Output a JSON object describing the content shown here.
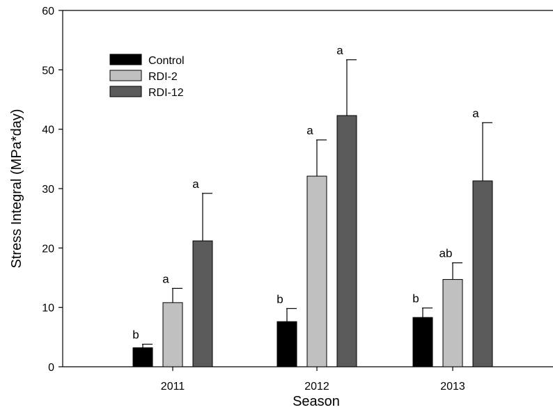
{
  "chart_data": {
    "type": "bar",
    "title": "",
    "xlabel": "Season",
    "ylabel": "Stress Integral (MPa*day)",
    "categories": [
      "2011",
      "2012",
      "2013"
    ],
    "ylim": [
      0,
      60
    ],
    "yticks": [
      0,
      10,
      20,
      30,
      40,
      50,
      60
    ],
    "grid": false,
    "legend_position": "top-left",
    "series": [
      {
        "name": "Control",
        "color": "#000000",
        "values": [
          3.2,
          7.6,
          8.3
        ],
        "errors": [
          0.6,
          2.2,
          1.6
        ],
        "labels": [
          "b",
          "b",
          "b"
        ]
      },
      {
        "name": "RDI-2",
        "color": "#c0c0c0",
        "values": [
          10.8,
          32.1,
          14.7
        ],
        "errors": [
          2.4,
          6.1,
          2.8
        ],
        "labels": [
          "a",
          "a",
          "ab"
        ]
      },
      {
        "name": "RDI-12",
        "color": "#5a5a5a",
        "values": [
          21.2,
          42.3,
          31.3
        ],
        "errors": [
          8.0,
          9.4,
          9.8
        ],
        "labels": [
          "a",
          "a",
          "a"
        ]
      }
    ]
  }
}
